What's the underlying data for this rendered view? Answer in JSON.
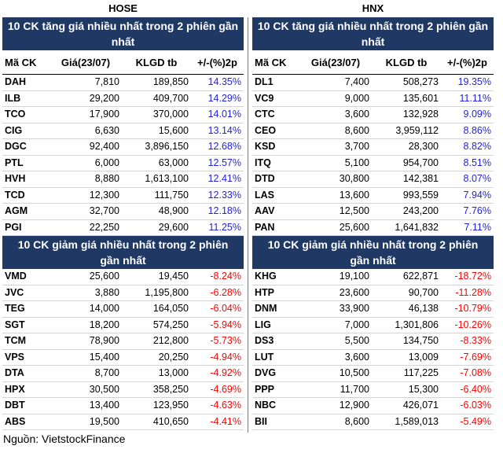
{
  "source": "Nguồn: VietstockFinance",
  "columns_hose": [
    "Mã CK",
    "Giá(23/07)",
    "KLGD tb",
    "+/-(%)2p"
  ],
  "columns_hnx": [
    "Mã CK",
    "Giá(23/07)",
    "KLGD tb",
    "+/-(%)2p"
  ],
  "hose": {
    "exchange": "HOSE",
    "gain_title": "10 CK tăng giá nhiều nhất trong 2 phiên gần nhất",
    "loss_title": "10 CK giảm giá nhiều nhất trong 2 phiên gần nhất",
    "gainers": [
      {
        "code": "DAH",
        "price": "7,810",
        "volume": "189,850",
        "change": "14.35%"
      },
      {
        "code": "ILB",
        "price": "29,200",
        "volume": "409,700",
        "change": "14.29%"
      },
      {
        "code": "TCO",
        "price": "17,900",
        "volume": "370,000",
        "change": "14.01%"
      },
      {
        "code": "CIG",
        "price": "6,630",
        "volume": "15,600",
        "change": "13.14%"
      },
      {
        "code": "DGC",
        "price": "92,400",
        "volume": "3,896,150",
        "change": "12.68%"
      },
      {
        "code": "PTL",
        "price": "6,000",
        "volume": "63,000",
        "change": "12.57%"
      },
      {
        "code": "HVH",
        "price": "8,880",
        "volume": "1,613,100",
        "change": "12.41%"
      },
      {
        "code": "TCD",
        "price": "12,300",
        "volume": "111,750",
        "change": "12.33%"
      },
      {
        "code": "AGM",
        "price": "32,700",
        "volume": "48,900",
        "change": "12.18%"
      },
      {
        "code": "PGI",
        "price": "22,250",
        "volume": "29,600",
        "change": "11.25%"
      }
    ],
    "losers": [
      {
        "code": "VMD",
        "price": "25,600",
        "volume": "19,450",
        "change": "-8.24%"
      },
      {
        "code": "JVC",
        "price": "3,880",
        "volume": "1,195,800",
        "change": "-6.28%"
      },
      {
        "code": "TEG",
        "price": "14,000",
        "volume": "164,050",
        "change": "-6.04%"
      },
      {
        "code": "SGT",
        "price": "18,200",
        "volume": "574,250",
        "change": "-5.94%"
      },
      {
        "code": "TCM",
        "price": "78,900",
        "volume": "212,800",
        "change": "-5.73%"
      },
      {
        "code": "VPS",
        "price": "15,400",
        "volume": "20,250",
        "change": "-4.94%"
      },
      {
        "code": "DTA",
        "price": "8,700",
        "volume": "13,000",
        "change": "-4.92%"
      },
      {
        "code": "HPX",
        "price": "30,500",
        "volume": "358,250",
        "change": "-4.69%"
      },
      {
        "code": "DBT",
        "price": "13,400",
        "volume": "123,950",
        "change": "-4.63%"
      },
      {
        "code": "ABS",
        "price": "19,500",
        "volume": "410,650",
        "change": "-4.41%"
      }
    ]
  },
  "hnx": {
    "exchange": "HNX",
    "gain_title": "10 CK tăng giá nhiều nhất trong 2 phiên gần nhất",
    "loss_title": "10 CK giảm giá nhiều nhất trong 2 phiên gần nhất",
    "gainers": [
      {
        "code": "DL1",
        "price": "7,400",
        "volume": "508,273",
        "change": "19.35%"
      },
      {
        "code": "VC9",
        "price": "9,000",
        "volume": "135,601",
        "change": "11.11%"
      },
      {
        "code": "CTC",
        "price": "3,600",
        "volume": "132,928",
        "change": "9.09%"
      },
      {
        "code": "CEO",
        "price": "8,600",
        "volume": "3,959,112",
        "change": "8.86%"
      },
      {
        "code": "KSD",
        "price": "3,700",
        "volume": "28,300",
        "change": "8.82%"
      },
      {
        "code": "ITQ",
        "price": "5,100",
        "volume": "954,700",
        "change": "8.51%"
      },
      {
        "code": "DTD",
        "price": "30,800",
        "volume": "142,381",
        "change": "8.07%"
      },
      {
        "code": "LAS",
        "price": "13,600",
        "volume": "993,559",
        "change": "7.94%"
      },
      {
        "code": "AAV",
        "price": "12,500",
        "volume": "243,200",
        "change": "7.76%"
      },
      {
        "code": "PAN",
        "price": "25,600",
        "volume": "1,641,832",
        "change": "7.11%"
      }
    ],
    "losers": [
      {
        "code": "KHG",
        "price": "19,100",
        "volume": "622,871",
        "change": "-18.72%"
      },
      {
        "code": "HTP",
        "price": "23,600",
        "volume": "90,700",
        "change": "-11.28%"
      },
      {
        "code": "DNM",
        "price": "33,900",
        "volume": "46,138",
        "change": "-10.79%"
      },
      {
        "code": "LIG",
        "price": "7,000",
        "volume": "1,301,806",
        "change": "-10.26%"
      },
      {
        "code": "DS3",
        "price": "5,500",
        "volume": "134,750",
        "change": "-8.33%"
      },
      {
        "code": "LUT",
        "price": "3,600",
        "volume": "13,009",
        "change": "-7.69%"
      },
      {
        "code": "DVG",
        "price": "10,500",
        "volume": "117,225",
        "change": "-7.08%"
      },
      {
        "code": "PPP",
        "price": "11,700",
        "volume": "15,300",
        "change": "-6.40%"
      },
      {
        "code": "NBC",
        "price": "12,900",
        "volume": "426,071",
        "change": "-6.03%"
      },
      {
        "code": "BII",
        "price": "8,600",
        "volume": "1,589,013",
        "change": "-5.49%"
      }
    ]
  }
}
